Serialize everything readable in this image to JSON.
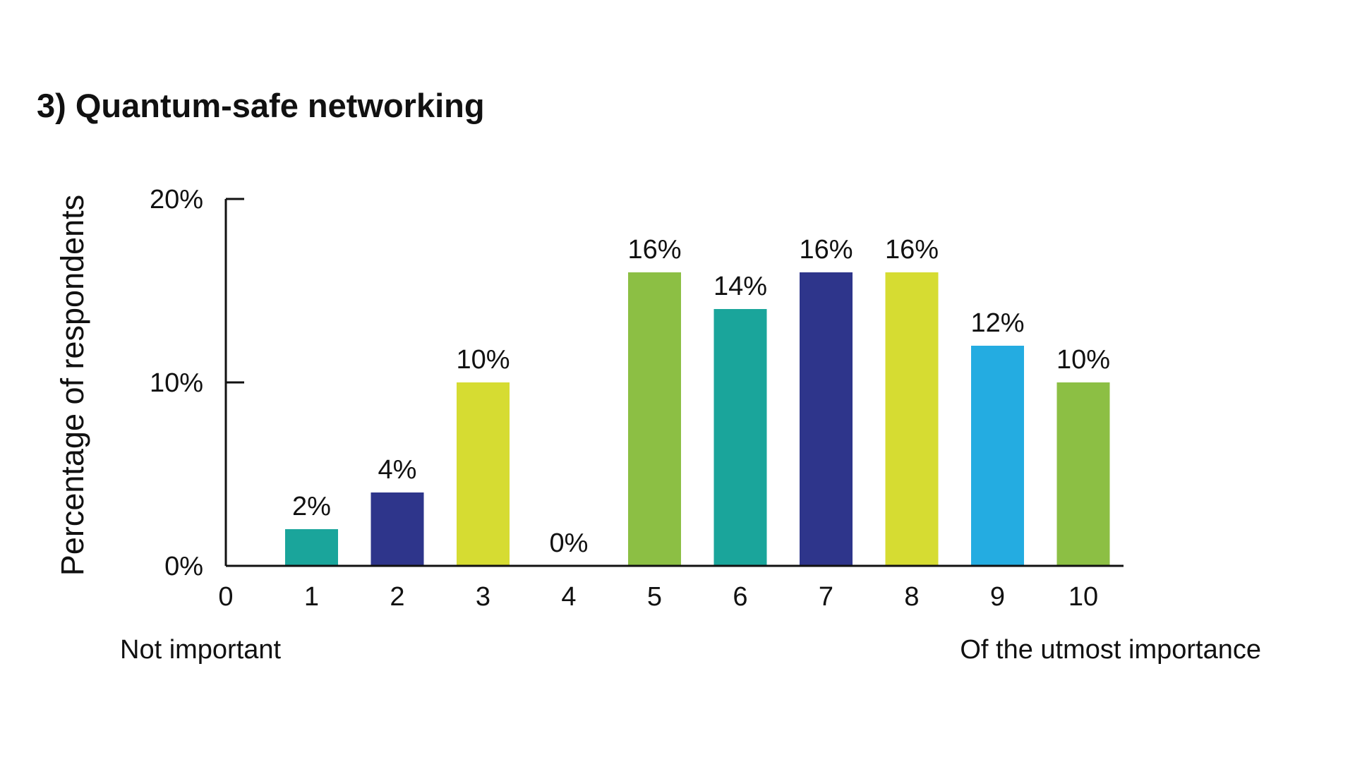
{
  "chart_data": {
    "type": "bar",
    "title": "3) Quantum-safe networking",
    "ylabel": "Percentage of respondents",
    "xlabel": "",
    "x_axis_ticks": [
      "0",
      "1",
      "2",
      "3",
      "4",
      "5",
      "6",
      "7",
      "8",
      "9",
      "10"
    ],
    "categories": [
      "1",
      "2",
      "3",
      "4",
      "5",
      "6",
      "7",
      "8",
      "9",
      "10"
    ],
    "values": [
      2,
      4,
      10,
      0,
      16,
      14,
      16,
      16,
      12,
      10
    ],
    "value_labels": [
      "2%",
      "4%",
      "10%",
      "0%",
      "16%",
      "14%",
      "16%",
      "16%",
      "12%",
      "10%"
    ],
    "bar_colors": [
      "#1aa59b",
      "#2e358b",
      "#d6dc32",
      "#d6dc32",
      "#8cbf44",
      "#1aa59b",
      "#2e358b",
      "#d6dc32",
      "#24ace1",
      "#8cbf44"
    ],
    "ylim": [
      0,
      20
    ],
    "y_ticks": [
      0,
      10,
      20
    ],
    "y_tick_labels": [
      "0%",
      "10%",
      "20%"
    ],
    "scale_low_label": "Not important",
    "scale_high_label": "Of the utmost importance",
    "grid": false,
    "legend": "none"
  }
}
